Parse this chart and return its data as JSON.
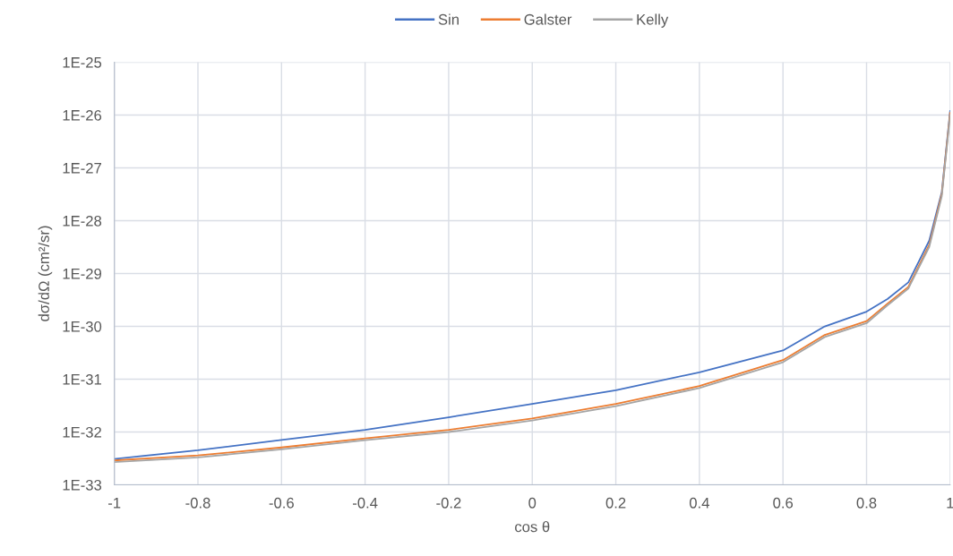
{
  "chart_data": {
    "type": "line",
    "xlabel": "cos θ",
    "ylabel": "dσ/dΩ (cm²/sr)",
    "x": [
      -1,
      -0.8,
      -0.6,
      -0.4,
      -0.2,
      0,
      0.2,
      0.4,
      0.6,
      0.7,
      0.8,
      0.85,
      0.9,
      0.95,
      0.98,
      1
    ],
    "series": [
      {
        "name": "Sin",
        "color": "#4472c4",
        "values": [
          3.1e-33,
          4.5e-33,
          7.1e-33,
          1.1e-32,
          1.9e-32,
          3.4e-32,
          6.2e-32,
          1.35e-31,
          3.5e-31,
          1e-30,
          1.9e-30,
          3.3e-30,
          6.8e-30,
          4.2e-29,
          3.5e-28,
          1.2e-26
        ]
      },
      {
        "name": "Galster",
        "color": "#ed7d31",
        "values": [
          2.9e-33,
          3.6e-33,
          5.1e-33,
          7.6e-33,
          1.1e-32,
          1.8e-32,
          3.4e-32,
          7.4e-32,
          2.3e-31,
          6.9e-31,
          1.26e-30,
          2.7e-30,
          5.6e-30,
          3.5e-29,
          3.2e-28,
          1.1e-26
        ]
      },
      {
        "name": "Kelly",
        "color": "#a5a5a5",
        "values": [
          2.7e-33,
          3.3e-33,
          4.7e-33,
          7e-33,
          1e-32,
          1.65e-32,
          3.1e-32,
          6.8e-32,
          2.1e-31,
          6.3e-31,
          1.15e-30,
          2.5e-30,
          5.2e-30,
          3.2e-29,
          2.9e-28,
          1e-26
        ]
      }
    ],
    "log": true,
    "xlim": [
      -1,
      1
    ],
    "ylim": [
      1e-33,
      1e-25
    ],
    "xticks": [
      -1,
      -0.8,
      -0.6,
      -0.4,
      -0.2,
      0,
      0.2,
      0.4,
      0.6,
      0.8,
      1
    ],
    "yticks": [
      {
        "value": 1e-33,
        "label": "1E-33"
      },
      {
        "value": 1e-32,
        "label": "1E-32"
      },
      {
        "value": 1e-31,
        "label": "1E-31"
      },
      {
        "value": 1e-30,
        "label": "1E-30"
      },
      {
        "value": 1e-29,
        "label": "1E-29"
      },
      {
        "value": 1e-28,
        "label": "1E-28"
      },
      {
        "value": 1e-27,
        "label": "1E-27"
      },
      {
        "value": 1e-26,
        "label": "1E-26"
      },
      {
        "value": 1e-25,
        "label": "1E-25"
      }
    ],
    "grid": true,
    "legend": "top",
    "marker": "none",
    "line_style": "solid"
  }
}
